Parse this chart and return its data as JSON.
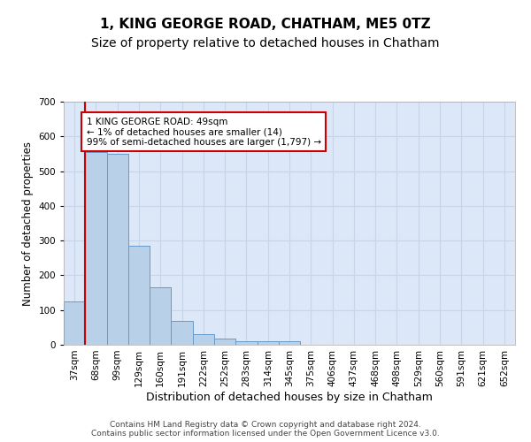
{
  "title": "1, KING GEORGE ROAD, CHATHAM, ME5 0TZ",
  "subtitle": "Size of property relative to detached houses in Chatham",
  "xlabel": "Distribution of detached houses by size in Chatham",
  "ylabel": "Number of detached properties",
  "footer_line1": "Contains HM Land Registry data © Crown copyright and database right 2024.",
  "footer_line2": "Contains public sector information licensed under the Open Government Licence v3.0.",
  "bar_labels": [
    "37sqm",
    "68sqm",
    "99sqm",
    "129sqm",
    "160sqm",
    "191sqm",
    "222sqm",
    "252sqm",
    "283sqm",
    "314sqm",
    "345sqm",
    "375sqm",
    "406sqm",
    "437sqm",
    "468sqm",
    "498sqm",
    "529sqm",
    "560sqm",
    "591sqm",
    "621sqm",
    "652sqm"
  ],
  "bar_values": [
    125,
    555,
    550,
    285,
    165,
    70,
    30,
    18,
    10,
    10,
    10,
    0,
    0,
    0,
    0,
    0,
    0,
    0,
    0,
    0,
    0
  ],
  "bar_color": "#b8d0e8",
  "bar_edgecolor": "#6699cc",
  "annotation_text": "1 KING GEORGE ROAD: 49sqm\n← 1% of detached houses are smaller (14)\n99% of semi-detached houses are larger (1,797) →",
  "annotation_box_facecolor": "#ffffff",
  "annotation_box_edgecolor": "#cc0000",
  "vline_x": 0.5,
  "vline_color": "#cc0000",
  "ylim": [
    0,
    700
  ],
  "yticks": [
    0,
    100,
    200,
    300,
    400,
    500,
    600,
    700
  ],
  "grid_color": "#c8d4e8",
  "background_color": "#dce8f8",
  "title_fontsize": 11,
  "subtitle_fontsize": 10,
  "xlabel_fontsize": 9,
  "ylabel_fontsize": 8.5,
  "tick_fontsize": 7.5,
  "annotation_fontsize": 7.5,
  "footer_fontsize": 6.5
}
